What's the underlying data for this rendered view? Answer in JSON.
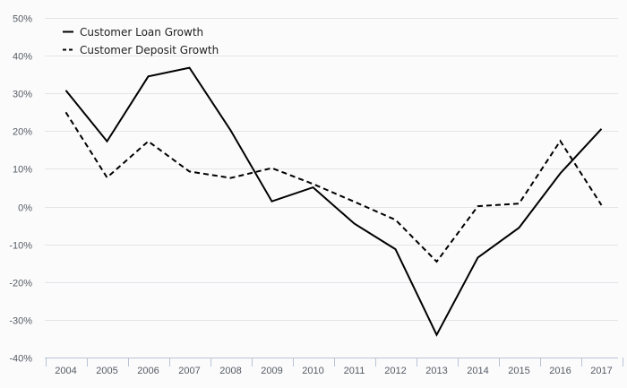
{
  "chart_data": {
    "type": "line",
    "categories": [
      "2004",
      "2005",
      "2006",
      "2007",
      "2008",
      "2009",
      "2010",
      "2011",
      "2012",
      "2013",
      "2014",
      "2015",
      "2016",
      "2017"
    ],
    "y_ticks": [
      "50%",
      "40%",
      "30%",
      "20%",
      "10%",
      "0%",
      "-10%",
      "-20%",
      "-30%",
      "-40%"
    ],
    "ylim": [
      -40,
      50
    ],
    "y_unit": "%",
    "grid": "horizontal",
    "legend_position": "top-left",
    "series": [
      {
        "name": "Customer Loan Growth",
        "style": "solid",
        "color": "#000000",
        "values": [
          30.8,
          17.3,
          34.5,
          36.8,
          20.2,
          1.4,
          5.1,
          -4.5,
          -11.3,
          -34.0,
          -13.5,
          -5.6,
          8.8,
          20.6
        ]
      },
      {
        "name": "Customer Deposit Growth",
        "style": "dashed",
        "color": "#000000",
        "values": [
          25.0,
          7.7,
          17.3,
          9.3,
          7.6,
          10.2,
          6.0,
          1.3,
          -3.5,
          -14.6,
          0.1,
          0.8,
          17.4,
          0.4
        ]
      }
    ]
  },
  "colors": {
    "background": "#fbfbfc",
    "grid": "#e3e4e8",
    "axis": "#b9c3d6",
    "tick_text": "#555b63"
  }
}
